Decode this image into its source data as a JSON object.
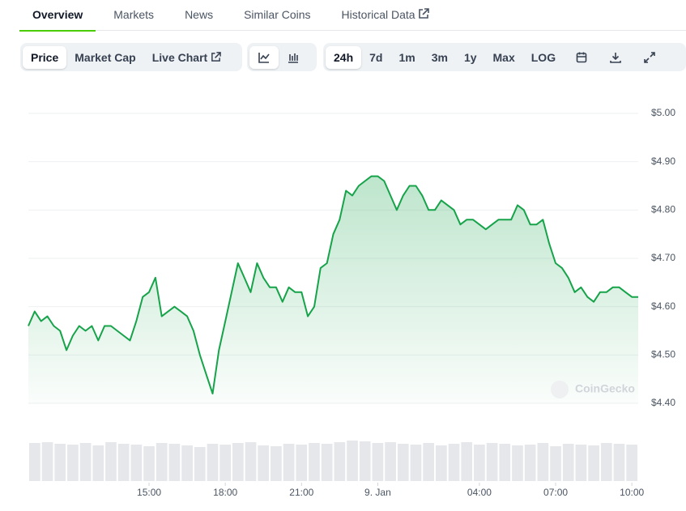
{
  "tabs": [
    "Overview",
    "Markets",
    "News",
    "Similar Coins",
    "Historical Data"
  ],
  "toolbar": {
    "view": [
      "Price",
      "Market Cap",
      "Live Chart"
    ],
    "ranges": [
      "24h",
      "7d",
      "1m",
      "3m",
      "1y",
      "Max",
      "LOG"
    ]
  },
  "chart_data": {
    "type": "line",
    "x": [
      10.25,
      10.5,
      10.75,
      11,
      11.25,
      11.5,
      11.75,
      12,
      12.25,
      12.5,
      12.75,
      13,
      13.25,
      13.5,
      13.75,
      14,
      14.25,
      14.5,
      14.75,
      15,
      15.25,
      15.5,
      15.75,
      16,
      16.25,
      16.5,
      16.75,
      17,
      17.25,
      17.5,
      17.75,
      18,
      18.25,
      18.5,
      18.75,
      19,
      19.25,
      19.5,
      19.75,
      20,
      20.25,
      20.5,
      20.75,
      21,
      21.25,
      21.5,
      21.75,
      22,
      22.25,
      22.5,
      22.75,
      23,
      23.25,
      23.5,
      23.75,
      24,
      24.25,
      24.5,
      24.75,
      25,
      25.25,
      25.5,
      25.75,
      26,
      26.25,
      26.5,
      26.75,
      27,
      27.25,
      27.5,
      27.75,
      28,
      28.25,
      28.5,
      28.75,
      29,
      29.25,
      29.5,
      29.75,
      30,
      30.25,
      30.5,
      30.75,
      31,
      31.25,
      31.5,
      31.75,
      32,
      32.25,
      32.5,
      32.75,
      33,
      33.25,
      33.5,
      33.75,
      34,
      34.25
    ],
    "series": [
      {
        "color": "#16a34a",
        "values": [
          4.56,
          4.59,
          4.57,
          4.58,
          4.56,
          4.55,
          4.51,
          4.54,
          4.56,
          4.55,
          4.56,
          4.53,
          4.56,
          4.56,
          4.55,
          4.54,
          4.53,
          4.57,
          4.62,
          4.63,
          4.66,
          4.58,
          4.59,
          4.6,
          4.59,
          4.58,
          4.55,
          4.5,
          4.46,
          4.42,
          4.51,
          4.57,
          4.63,
          4.69,
          4.66,
          4.63,
          4.69,
          4.66,
          4.64,
          4.64,
          4.61,
          4.64,
          4.63,
          4.63,
          4.58,
          4.6,
          4.68,
          4.69,
          4.75,
          4.78,
          4.84,
          4.83,
          4.85,
          4.86,
          4.87,
          4.87,
          4.86,
          4.83,
          4.8,
          4.83,
          4.85,
          4.85,
          4.83,
          4.8,
          4.8,
          4.82,
          4.81,
          4.8,
          4.77,
          4.78,
          4.78,
          4.77,
          4.76,
          4.77,
          4.78,
          4.78,
          4.78,
          4.81,
          4.8,
          4.77,
          4.77,
          4.78,
          4.73,
          4.69,
          4.68,
          4.66,
          4.63,
          4.64,
          4.62,
          4.61,
          4.63,
          4.63,
          4.64,
          4.64,
          4.63,
          4.62,
          4.62
        ]
      }
    ],
    "xlim": [
      10.25,
      34.25
    ],
    "xticks": [
      {
        "value": 15,
        "label": "15:00"
      },
      {
        "value": 18,
        "label": "18:00"
      },
      {
        "value": 21,
        "label": "21:00"
      },
      {
        "value": 24,
        "label": "9. Jan"
      },
      {
        "value": 28,
        "label": "04:00"
      },
      {
        "value": 31,
        "label": "07:00"
      },
      {
        "value": 34,
        "label": "10:00"
      }
    ],
    "ylim": [
      4.4,
      5.0
    ],
    "yticks": [
      {
        "value": 4.4,
        "label": "$4.40"
      },
      {
        "value": 4.5,
        "label": "$4.50"
      },
      {
        "value": 4.6,
        "label": "$4.60"
      },
      {
        "value": 4.7,
        "label": "$4.70"
      },
      {
        "value": 4.8,
        "label": "$4.80"
      },
      {
        "value": 4.9,
        "label": "$4.90"
      },
      {
        "value": 5.0,
        "label": "$5.00"
      }
    ],
    "grid": true,
    "watermark": "CoinGecko",
    "volume": {
      "color": "#e5e7eb",
      "values": [
        47,
        48,
        46,
        45,
        47,
        44,
        48,
        46,
        45,
        43,
        47,
        46,
        44,
        42,
        46,
        45,
        47,
        48,
        44,
        43,
        46,
        45,
        47,
        46,
        48,
        50,
        49,
        47,
        48,
        46,
        45,
        47,
        44,
        46,
        48,
        45,
        47,
        46,
        44,
        45,
        47,
        43,
        46,
        45,
        44,
        47,
        46,
        45
      ]
    }
  }
}
